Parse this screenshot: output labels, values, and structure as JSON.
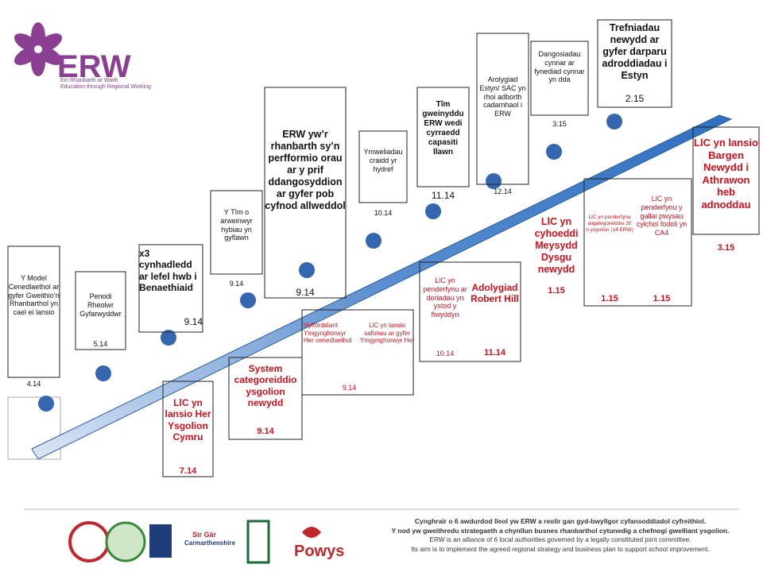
{
  "logo": {
    "name": "ERW",
    "tagline_cy": "Ein Rhanbarth ar Waith",
    "tagline_en": "Education through Regional Working"
  },
  "milestones": [
    {
      "text": "Y Model Cenedlaethol ar gyfer Gweithio’n Rhanbarthol yn cael ei lansio",
      "date": "4.14"
    },
    {
      "text": "Penodi Rheolwr Gyfarwyddwr",
      "date": "5.14"
    },
    {
      "text": "x3 cynhadledd ar lefel hwb i Benaethiaid",
      "date": "9.14"
    },
    {
      "text": "Y Tîm o arweinwyr hybiau yn gyflawn",
      "date": "9.14"
    },
    {
      "text": "ERW yw’r rhanbarth sy’n perfformio orau ar y prif ddangosyddion ar gyfer pob cyfnod allweddol",
      "date": "9.14"
    },
    {
      "text": "Ymweliadau craidd yr hydref",
      "date": "10.14"
    },
    {
      "text": "Tîm gweinyddu ERW wedi cyrraedd capasiti llawn",
      "date": "11.14"
    },
    {
      "text": "Arolygiad Estyn/ SAC yn rhoi adborth cadarnhaol i ERW",
      "date": "12.14"
    },
    {
      "text": "Dangosiadau cynnar ar fynediad cynnar yn dda",
      "date": "3.15"
    },
    {
      "text": "Trefniadau newydd ar gyfer darparu adroddiadau i Estyn",
      "date": "2.15"
    }
  ],
  "government_actions": [
    {
      "text": "LlC yn lansio Her Ysgolion Cymru",
      "date": "7.14"
    },
    {
      "text": "System categoreiddio ysgolion newydd",
      "date": "9.14"
    },
    {
      "text": "Hyfforddiant Ymgynghorwyr Her cenedlaethol",
      "date": "9.14"
    },
    {
      "text": "LlC yn lansio safonau ar gyfer Ymgynghorwyr Her"
    },
    {
      "text": "LlC yn penderfynu ar doriadau yn ystod y flwyddyn",
      "date": "10.14"
    },
    {
      "text": "Adolygiad Robert Hill",
      "date": "11.14"
    },
    {
      "text": "LlC yn cyhoeddi Meysydd Dysgu newydd",
      "date": "1.15"
    },
    {
      "text": "LlC yn penderfynu ailgategoreiddio 30 o ysgolion (14 ERW)",
      "date": "1.15"
    },
    {
      "text": "LlC yn penderfynu y gallai pwysau cylchol fodoli yn CA4",
      "date": "1.15"
    },
    {
      "text": "LlC yn lansio Bargen Newydd i Athrawon heb adnoddau",
      "date": "3.15"
    }
  ],
  "footer": {
    "lines": [
      "Cynghrair o 6 awdurdod lleol yw ERW a reolir gan gyd-bwyllgor cyfansoddiadol cyfreithiol.",
      "Y nod yw gweithredu strategaeth a chynllun busnes rhanbarthol cytunedig a chefnogi gwelliant ysgolion.",
      "ERW is an alliance of 6 local authorities governed by a legally constituted joint committee.",
      "Its aim is to implement the agreed regional strategy and business plan to support school improvement."
    ],
    "councils": [
      "Sir Gâr",
      "Carmarthenshire",
      "Powys"
    ]
  }
}
